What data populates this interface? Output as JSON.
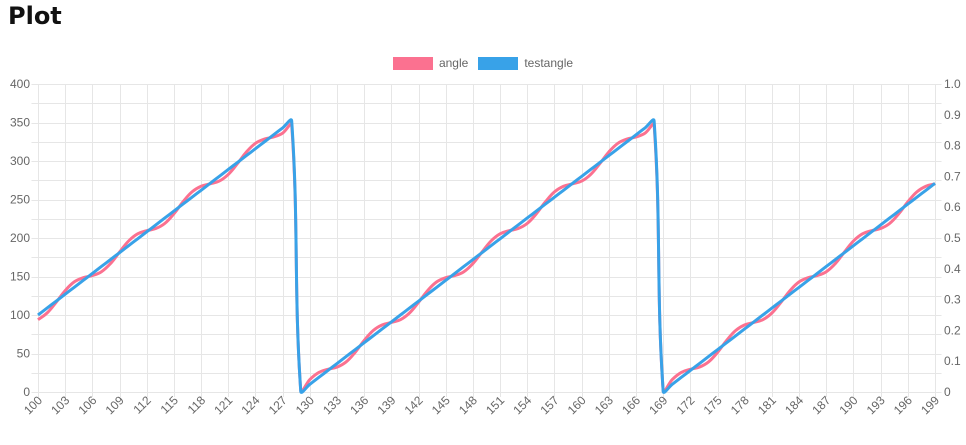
{
  "page": {
    "title": "Plot"
  },
  "legend": [
    {
      "label": "angle",
      "color": "#fb7190"
    },
    {
      "label": "testangle",
      "color": "#38a2e8"
    }
  ],
  "colors": {
    "grid": "#e6e6e6",
    "tick_text": "#666666",
    "title_text": "#111111",
    "background": "#ffffff"
  },
  "chart_data": {
    "type": "line",
    "title": "",
    "legend_position": "top",
    "grid": true,
    "smoothing": 0.4,
    "x": [
      100,
      101,
      102,
      103,
      104,
      105,
      106,
      107,
      108,
      109,
      110,
      111,
      112,
      113,
      114,
      115,
      116,
      117,
      118,
      119,
      120,
      121,
      122,
      123,
      124,
      125,
      126,
      127,
      128,
      129,
      130,
      131,
      132,
      133,
      134,
      135,
      136,
      137,
      138,
      139,
      140,
      141,
      142,
      143,
      144,
      145,
      146,
      147,
      148,
      149,
      150,
      151,
      152,
      153,
      154,
      155,
      156,
      157,
      158,
      159,
      160,
      161,
      162,
      163,
      164,
      165,
      166,
      167,
      168,
      169,
      170,
      171,
      172,
      173,
      174,
      175,
      176,
      177,
      178,
      179,
      180,
      181,
      182,
      183,
      184,
      185,
      186,
      187,
      188,
      189,
      190,
      191,
      192,
      193,
      194,
      195,
      196,
      197,
      198,
      199
    ],
    "series": [
      {
        "name": "angle",
        "axis": "left",
        "color": "#fb7190",
        "line_width": 3,
        "values": [
          93.9,
          102.6,
          116.5,
          131.7,
          143,
          148.5,
          151.2,
          156.2,
          166.8,
          181.7,
          196.1,
          205.4,
          209.5,
          212.3,
          219,
          231.5,
          246.9,
          259.9,
          267.2,
          270.3,
          273.9,
          282.6,
          296.5,
          311.7,
          323,
          328.5,
          331.2,
          336.2,
          346.8,
          1.7,
          16.1,
          25.4,
          29.5,
          32.3,
          39,
          51.5,
          66.9,
          79.9,
          87.2,
          90.3,
          93.9,
          102.6,
          116.5,
          131.7,
          143,
          148.5,
          151.2,
          156.2,
          166.8,
          181.7,
          196.1,
          205.4,
          209.5,
          212.3,
          219,
          231.5,
          246.9,
          259.9,
          267.2,
          270.3,
          273.9,
          282.6,
          296.5,
          311.7,
          323,
          328.5,
          331.2,
          336.2,
          346.8,
          1.7,
          16.1,
          25.4,
          29.5,
          32.3,
          39,
          51.5,
          66.9,
          79.9,
          87.2,
          90.3,
          93.9,
          102.6,
          116.5,
          131.7,
          143,
          148.5,
          151.2,
          156.2,
          166.8,
          181.7,
          196.1,
          205.4,
          209.5,
          212.3,
          219,
          231.5,
          246.9,
          259.9,
          267.2,
          270.3
        ]
      },
      {
        "name": "testangle",
        "axis": "right",
        "color": "#38a2e8",
        "line_width": 3,
        "values": [
          0.25,
          0.2725,
          0.295,
          0.3175,
          0.34,
          0.3625,
          0.385,
          0.4075,
          0.43,
          0.4525,
          0.475,
          0.4975,
          0.52,
          0.5425,
          0.565,
          0.5875,
          0.61,
          0.6325,
          0.655,
          0.6775,
          0.7,
          0.7225,
          0.745,
          0.7675,
          0.79,
          0.8125,
          0.835,
          0.8575,
          0.88,
          0.0025,
          0.025,
          0.0475,
          0.07,
          0.0925,
          0.115,
          0.1375,
          0.16,
          0.1825,
          0.205,
          0.2275,
          0.25,
          0.2725,
          0.295,
          0.3175,
          0.34,
          0.3625,
          0.385,
          0.4075,
          0.43,
          0.4525,
          0.475,
          0.4975,
          0.52,
          0.5425,
          0.565,
          0.5875,
          0.61,
          0.6325,
          0.655,
          0.6775,
          0.7,
          0.7225,
          0.745,
          0.7675,
          0.79,
          0.8125,
          0.835,
          0.8575,
          0.88,
          0.0025,
          0.025,
          0.0475,
          0.07,
          0.0925,
          0.115,
          0.1375,
          0.16,
          0.1825,
          0.205,
          0.2275,
          0.25,
          0.2725,
          0.295,
          0.3175,
          0.34,
          0.3625,
          0.385,
          0.4075,
          0.43,
          0.4525,
          0.475,
          0.4975,
          0.52,
          0.5425,
          0.565,
          0.5875,
          0.61,
          0.6325,
          0.655,
          0.6775
        ]
      }
    ],
    "axes": {
      "x": {
        "min": 100,
        "max": 199,
        "tick_step": 3,
        "tick_labels": [
          100,
          103,
          106,
          109,
          112,
          115,
          118,
          121,
          124,
          127,
          130,
          133,
          136,
          139,
          142,
          145,
          148,
          151,
          154,
          157,
          160,
          163,
          166,
          169,
          172,
          175,
          178,
          181,
          184,
          187,
          190,
          193,
          196,
          199
        ]
      },
      "y_left": {
        "min": 0,
        "max": 400,
        "label_step": 50,
        "grid_step": 25,
        "tick_labels": [
          0,
          50,
          100,
          150,
          200,
          250,
          300,
          350,
          400
        ]
      },
      "y_right": {
        "min": 0,
        "max": 1,
        "label_step": 0.1,
        "tick_labels": [
          "0",
          "0.1",
          "0.2",
          "0.3",
          "0.4",
          "0.5",
          "0.6",
          "0.7",
          "0.8",
          "0.9",
          "1.0"
        ]
      }
    }
  }
}
